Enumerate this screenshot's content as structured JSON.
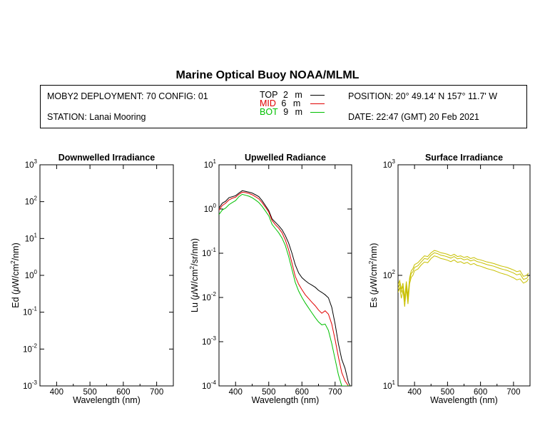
{
  "header": {
    "title": "Marine Optical Buoy NOAA/MLML",
    "deployment": "MOBY2 DEPLOYMENT: 70 CONFIG: 01",
    "station": "STATION: Lanai Mooring",
    "position": "POSITION: 20° 49.14' N   157° 11.7' W",
    "date": "DATE: 22:47 (GMT) 20 Feb 2021",
    "legend": [
      {
        "name": "TOP",
        "depth": "2",
        "unit": "m",
        "color": "#000000"
      },
      {
        "name": "MID",
        "depth": "6",
        "unit": "m",
        "color": "#e00000"
      },
      {
        "name": "BOT",
        "depth": "9",
        "unit": "m",
        "color": "#00c000"
      }
    ]
  },
  "chart_data": [
    {
      "type": "line",
      "title": "Downwelled Irradiance",
      "xlabel": "Wavelength (nm)",
      "ylabel_parts": [
        "Ed  (",
        "μ",
        "W/cm",
        "2",
        "/nm)"
      ],
      "xlim": [
        350,
        750
      ],
      "ylim": [
        0.001,
        1000
      ],
      "yscale": "log",
      "xticks": [
        400,
        500,
        600,
        700
      ],
      "yticks": [
        {
          "value": 0.001,
          "base": "10",
          "exp": "-3"
        },
        {
          "value": 0.01,
          "base": "10",
          "exp": "-2"
        },
        {
          "value": 0.1,
          "base": "10",
          "exp": "-1"
        },
        {
          "value": 1,
          "base": "10",
          "exp": "0"
        },
        {
          "value": 10,
          "base": "10",
          "exp": "1"
        },
        {
          "value": 100,
          "base": "10",
          "exp": "2"
        },
        {
          "value": 1000,
          "base": "10",
          "exp": "3"
        }
      ],
      "series": []
    },
    {
      "type": "line",
      "title": "Upwelled Radiance",
      "xlabel": "Wavelength (nm)",
      "ylabel_parts": [
        "Lu  (",
        "μ",
        "W/cm",
        "2",
        "/sr/nm)"
      ],
      "xlim": [
        350,
        750
      ],
      "ylim": [
        0.0001,
        10
      ],
      "yscale": "log",
      "xticks": [
        400,
        500,
        600,
        700
      ],
      "yticks": [
        {
          "value": 0.0001,
          "base": "10",
          "exp": "-4"
        },
        {
          "value": 0.001,
          "base": "10",
          "exp": "-3"
        },
        {
          "value": 0.01,
          "base": "10",
          "exp": "-2"
        },
        {
          "value": 0.1,
          "base": "10",
          "exp": "-1"
        },
        {
          "value": 1,
          "base": "10",
          "exp": "0"
        },
        {
          "value": 10,
          "base": "10",
          "exp": "1"
        }
      ],
      "series": [
        {
          "color": "#000000",
          "x": [
            350,
            360,
            370,
            380,
            390,
            400,
            410,
            420,
            430,
            440,
            450,
            460,
            470,
            480,
            490,
            500,
            510,
            520,
            530,
            540,
            550,
            560,
            570,
            580,
            590,
            600,
            610,
            620,
            630,
            640,
            650,
            660,
            670,
            680,
            690,
            700,
            710,
            720,
            730,
            740,
            745
          ],
          "y": [
            1.05,
            1.35,
            1.5,
            1.8,
            1.9,
            2.0,
            2.3,
            2.6,
            2.5,
            2.4,
            2.3,
            2.1,
            1.9,
            1.55,
            1.2,
            0.92,
            0.6,
            0.5,
            0.42,
            0.34,
            0.25,
            0.17,
            0.1,
            0.055,
            0.036,
            0.028,
            0.024,
            0.021,
            0.019,
            0.017,
            0.0145,
            0.013,
            0.0115,
            0.0098,
            0.006,
            0.0025,
            0.0009,
            0.0004,
            0.00025,
            0.00012,
            0.0001
          ]
        },
        {
          "color": "#e00000",
          "x": [
            350,
            360,
            370,
            380,
            390,
            400,
            410,
            420,
            430,
            440,
            450,
            460,
            470,
            480,
            490,
            500,
            510,
            520,
            530,
            540,
            550,
            560,
            570,
            580,
            590,
            600,
            610,
            620,
            630,
            640,
            650,
            660,
            670,
            680,
            690,
            700,
            710,
            720,
            730,
            740,
            745
          ],
          "y": [
            0.95,
            1.2,
            1.35,
            1.6,
            1.75,
            1.85,
            2.15,
            2.4,
            2.35,
            2.25,
            2.1,
            1.9,
            1.7,
            1.4,
            1.1,
            0.85,
            0.55,
            0.44,
            0.37,
            0.29,
            0.2,
            0.12,
            0.06,
            0.03,
            0.02,
            0.015,
            0.0115,
            0.0095,
            0.0078,
            0.0065,
            0.0052,
            0.0044,
            0.005,
            0.0042,
            0.0025,
            0.0011,
            0.00045,
            0.0002,
            0.00013,
            0.0001,
            0.0001
          ]
        },
        {
          "color": "#00c000",
          "x": [
            350,
            360,
            370,
            380,
            390,
            400,
            410,
            420,
            430,
            440,
            450,
            460,
            470,
            480,
            490,
            500,
            510,
            520,
            530,
            540,
            550,
            560,
            570,
            580,
            590,
            600,
            610,
            620,
            630,
            640,
            650,
            660,
            670,
            680,
            690,
            700,
            710,
            720,
            730,
            740,
            745
          ],
          "y": [
            0.75,
            0.95,
            1.05,
            1.25,
            1.4,
            1.55,
            1.9,
            2.15,
            2.05,
            1.95,
            1.8,
            1.6,
            1.4,
            1.15,
            0.9,
            0.7,
            0.45,
            0.36,
            0.29,
            0.22,
            0.15,
            0.085,
            0.043,
            0.022,
            0.014,
            0.01,
            0.0075,
            0.0058,
            0.0045,
            0.0035,
            0.0028,
            0.0024,
            0.0025,
            0.0018,
            0.0009,
            0.0004,
            0.00018,
            0.0001,
            0.0001,
            0.0001,
            0.0001
          ]
        }
      ]
    },
    {
      "type": "line",
      "title": "Surface Irradiance",
      "xlabel": "Wavelength (nm)",
      "ylabel_parts": [
        "Es  (",
        "μ",
        "W/cm",
        "2",
        "/nm)"
      ],
      "xlim": [
        350,
        750
      ],
      "ylim": [
        10,
        1000
      ],
      "yscale": "log",
      "xticks": [
        400,
        500,
        600,
        700
      ],
      "yticks": [
        {
          "value": 10,
          "base": "10",
          "exp": "1"
        },
        {
          "value": 100,
          "base": "10",
          "exp": "2"
        },
        {
          "value": 1000,
          "base": "10",
          "exp": "3"
        }
      ],
      "series": [
        {
          "color": "#c8c000",
          "x": [
            350,
            355,
            360,
            365,
            370,
            375,
            380,
            385,
            390,
            395,
            400,
            410,
            420,
            430,
            440,
            450,
            460,
            470,
            480,
            490,
            500,
            510,
            520,
            530,
            540,
            550,
            560,
            570,
            580,
            590,
            600,
            610,
            620,
            630,
            640,
            650,
            660,
            670,
            680,
            690,
            700,
            710,
            720,
            730,
            740,
            745
          ],
          "y": [
            82,
            90,
            75,
            85,
            62,
            88,
            65,
            95,
            110,
            115,
            125,
            130,
            140,
            150,
            148,
            160,
            168,
            165,
            160,
            158,
            155,
            150,
            155,
            148,
            150,
            145,
            148,
            142,
            145,
            140,
            138,
            135,
            132,
            130,
            128,
            125,
            122,
            120,
            118,
            115,
            112,
            108,
            110,
            98,
            100,
            105
          ]
        },
        {
          "color": "#c8c000",
          "x": [
            350,
            355,
            360,
            365,
            370,
            375,
            380,
            385,
            390,
            395,
            400,
            410,
            420,
            430,
            440,
            450,
            460,
            470,
            480,
            490,
            500,
            510,
            520,
            530,
            540,
            550,
            560,
            570,
            580,
            590,
            600,
            610,
            620,
            630,
            640,
            650,
            660,
            670,
            680,
            690,
            700,
            710,
            720,
            730,
            740,
            745
          ],
          "y": [
            76,
            84,
            70,
            80,
            58,
            82,
            60,
            90,
            104,
            108,
            118,
            122,
            132,
            142,
            140,
            152,
            160,
            157,
            152,
            150,
            147,
            143,
            148,
            141,
            143,
            138,
            141,
            135,
            138,
            133,
            131,
            128,
            125,
            123,
            121,
            118,
            115,
            113,
            111,
            108,
            105,
            101,
            103,
            92,
            94,
            99
          ]
        },
        {
          "color": "#c8c000",
          "x": [
            350,
            355,
            360,
            365,
            370,
            375,
            380,
            385,
            390,
            395,
            400,
            410,
            420,
            430,
            440,
            450,
            460,
            470,
            480,
            490,
            500,
            510,
            520,
            530,
            540,
            550,
            560,
            570,
            580,
            590,
            600,
            610,
            620,
            630,
            640,
            650,
            660,
            670,
            680,
            690,
            700,
            710,
            720,
            730,
            740,
            745
          ],
          "y": [
            70,
            78,
            62,
            74,
            52,
            76,
            55,
            84,
            96,
            100,
            110,
            114,
            124,
            132,
            130,
            142,
            150,
            147,
            142,
            140,
            137,
            133,
            138,
            131,
            133,
            128,
            131,
            125,
            128,
            123,
            121,
            118,
            115,
            113,
            111,
            108,
            105,
            103,
            101,
            98,
            95,
            91,
            93,
            85,
            88,
            93
          ]
        }
      ]
    }
  ]
}
